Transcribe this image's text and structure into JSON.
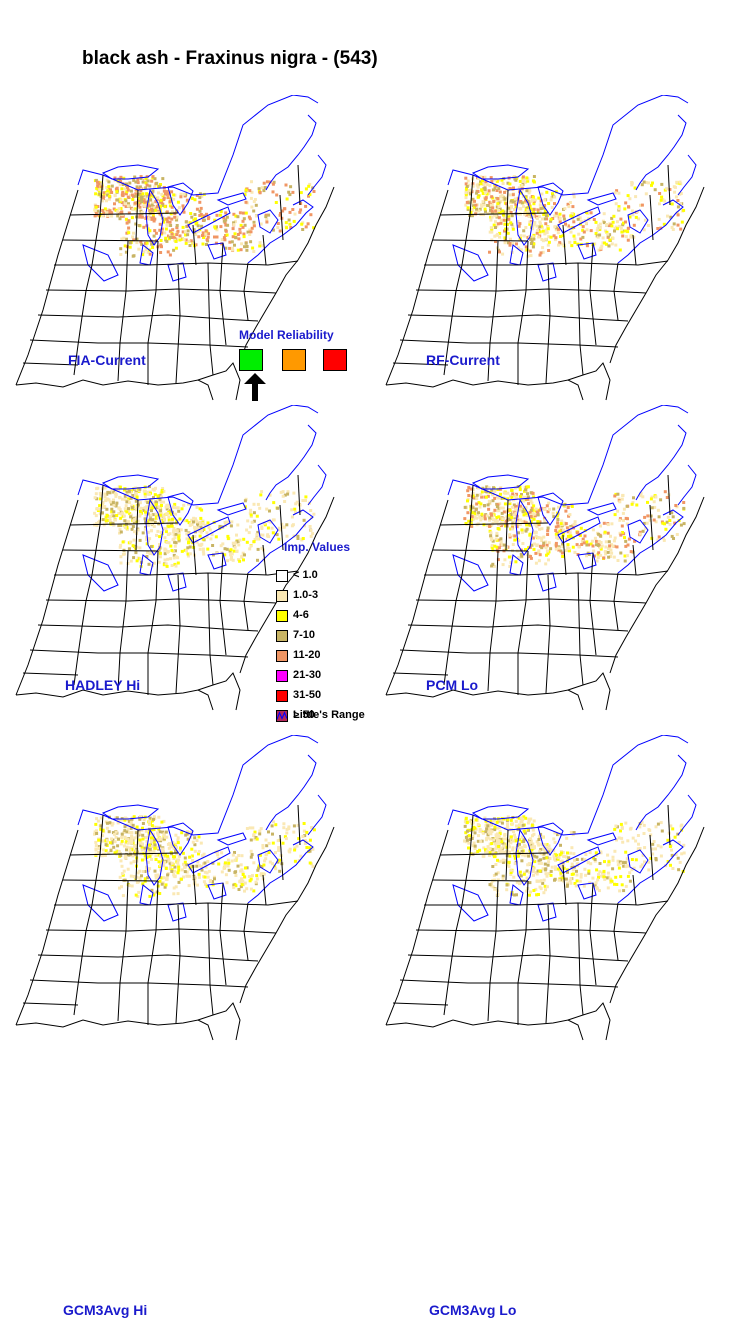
{
  "title": "black ash - Fraxinus nigra - (543)",
  "panels": [
    {
      "label": "FIA-Current",
      "intensity": "high"
    },
    {
      "label": "RF-Current",
      "intensity": "medium"
    },
    {
      "label": "HADLEY Hi",
      "intensity": "low"
    },
    {
      "label": "PCM Lo",
      "intensity": "medium"
    },
    {
      "label": "GCM3Avg Hi",
      "intensity": "low"
    },
    {
      "label": "GCM3Avg Lo",
      "intensity": "low"
    }
  ],
  "model_reliability": {
    "title": "Model Reliability",
    "levels": [
      {
        "color": "#00ee00",
        "selected": true
      },
      {
        "color": "#ff9900",
        "selected": false
      },
      {
        "color": "#ff0000",
        "selected": false
      }
    ]
  },
  "legend": {
    "title": "Imp. Values",
    "items": [
      {
        "label": "< 1.0",
        "color": "#ffffff"
      },
      {
        "label": "1.0-3",
        "color": "#fae8b4"
      },
      {
        "label": "4-6",
        "color": "#ffff00"
      },
      {
        "label": "7-10",
        "color": "#c8b464"
      },
      {
        "label": "11-20",
        "color": "#f09664"
      },
      {
        "label": "21-30",
        "color": "#ff00ff"
      },
      {
        "label": "31-50",
        "color": "#ff0000"
      },
      {
        "label": "> 50",
        "color": "#b4285a"
      }
    ],
    "range_label": "Little's Range"
  },
  "colors": {
    "state_lines": "#000000",
    "range_lines": "#0000ff",
    "label_blue": "#1a1acc"
  }
}
